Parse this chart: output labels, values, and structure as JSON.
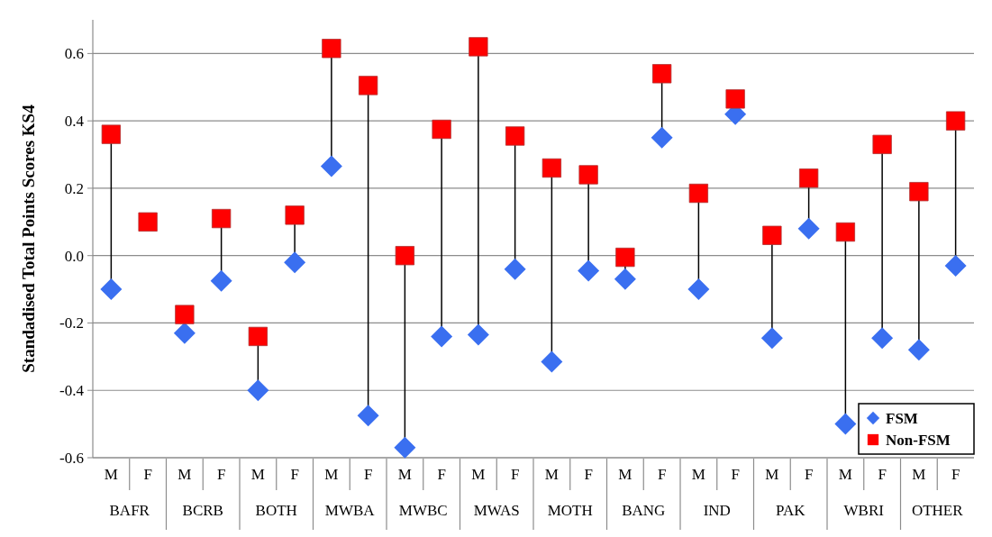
{
  "chart_data": {
    "type": "scatter",
    "ylabel": "Standadised Total Points Scores KS4",
    "categories": [
      "M",
      "F",
      "M",
      "F",
      "M",
      "F",
      "M",
      "F",
      "M",
      "F",
      "M",
      "F",
      "M",
      "F",
      "M",
      "F",
      "M",
      "F",
      "M",
      "F",
      "M",
      "F",
      "M",
      "F"
    ],
    "annotations": [
      "BAFR",
      "BCRB",
      "BOTH",
      "MWBA",
      "MWBC",
      "MWAS",
      "MOTH",
      "BANG",
      "IND",
      "PAK",
      "WBRI",
      "OTHER"
    ],
    "series": [
      {
        "name": "FSM",
        "color": "#3a6ff0",
        "marker": "diamond",
        "values": [
          -0.1,
          null,
          -0.23,
          -0.075,
          -0.4,
          -0.02,
          0.265,
          -0.475,
          -0.57,
          -0.24,
          -0.235,
          -0.04,
          -0.315,
          -0.045,
          -0.07,
          0.35,
          -0.1,
          0.42,
          -0.245,
          0.08,
          -0.5,
          -0.245,
          -0.28,
          -0.03
        ]
      },
      {
        "name": "Non-FSM",
        "color": "#ff0000",
        "marker": "square",
        "values": [
          0.36,
          0.1,
          -0.175,
          0.11,
          -0.24,
          0.12,
          0.615,
          0.505,
          0.0,
          0.375,
          0.62,
          0.355,
          0.26,
          0.24,
          -0.005,
          0.54,
          0.185,
          0.465,
          0.06,
          0.23,
          0.07,
          0.33,
          0.19,
          0.4
        ]
      }
    ],
    "ylim": [
      -0.6,
      0.7
    ],
    "yticks": [
      {
        "value": -0.6,
        "label": "-0.6"
      },
      {
        "value": -0.4,
        "label": "-0.4"
      },
      {
        "value": -0.2,
        "label": "-0.2"
      },
      {
        "value": 0,
        "label": "0.0"
      },
      {
        "value": 0.2,
        "label": "0.2"
      },
      {
        "value": 0.4,
        "label": "0.4"
      },
      {
        "value": 0.6,
        "label": "0.6"
      }
    ],
    "grid": "y",
    "legend": "bottom right"
  }
}
